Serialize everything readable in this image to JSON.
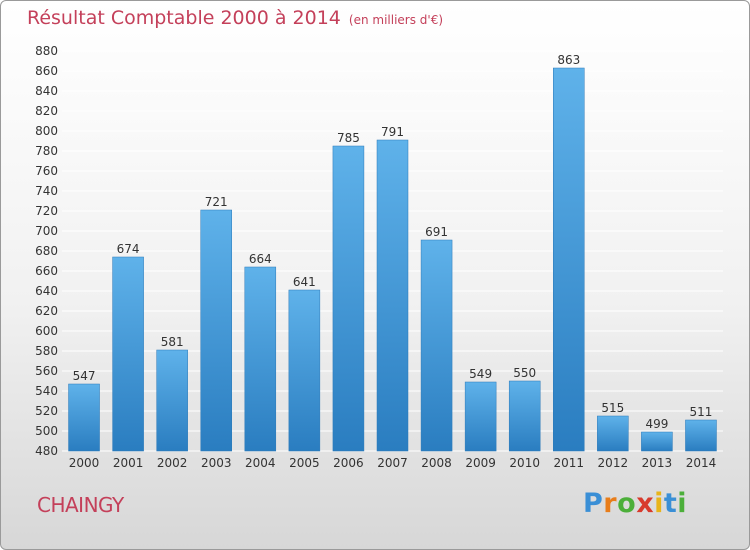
{
  "header": {
    "title": "Résultat Comptable 2000 à 2014",
    "subtitle": "(en milliers d'€)"
  },
  "footer": {
    "commune": "CHAINGY",
    "logo_text": "Proxiti"
  },
  "colors": {
    "title": "#c4405a",
    "bar_top": "#5fb2ea",
    "bar_bottom": "#2a7dc0",
    "grid": "#ffffff",
    "axis_text": "#333333"
  },
  "chart_data": {
    "type": "bar",
    "title": "Résultat Comptable 2000 à 2014",
    "subtitle": "(en milliers d'€)",
    "categories": [
      "2000",
      "2001",
      "2002",
      "2003",
      "2004",
      "2005",
      "2006",
      "2007",
      "2008",
      "2009",
      "2010",
      "2011",
      "2012",
      "2013",
      "2014"
    ],
    "values": [
      547,
      674,
      581,
      721,
      664,
      641,
      785,
      791,
      691,
      549,
      550,
      863,
      515,
      499,
      511
    ],
    "ylim": [
      480,
      880
    ],
    "yticks": [
      480,
      500,
      520,
      540,
      560,
      580,
      600,
      620,
      640,
      660,
      680,
      700,
      720,
      740,
      760,
      780,
      800,
      820,
      840,
      860,
      880
    ],
    "grid": true,
    "data_labels": true
  }
}
